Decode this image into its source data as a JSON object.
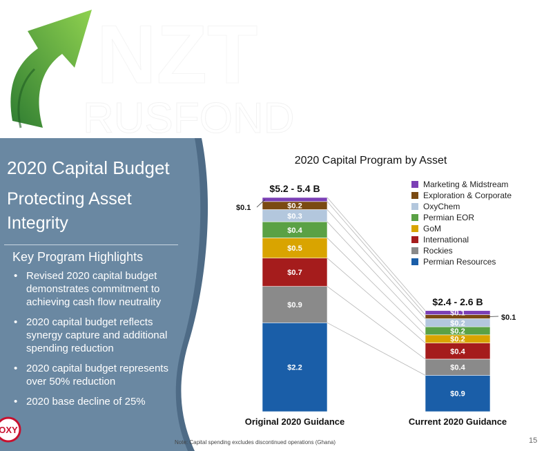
{
  "watermark": {
    "line1": "NZT",
    "line2": "RUSFOND"
  },
  "left_panel": {
    "title": "2020 Capital Budget",
    "subtitle": "Protecting Asset Integrity",
    "highlights_heading": "Key Program Highlights",
    "bullets": [
      "Revised 2020 capital budget demonstrates commitment to achieving cash flow neutrality",
      "2020 capital budget reflects synergy capture and additional spending reduction",
      "2020 capital budget represents over 50% reduction",
      "2020 base decline of 25%"
    ],
    "logo_text": "OXY"
  },
  "colors": {
    "panel": "#6a88a2",
    "panel_dark": "#4e6b86",
    "arrow_light": "#8fd14f",
    "arrow_dark": "#2f7d32"
  },
  "chart_data": {
    "type": "bar",
    "stacked": true,
    "title": "2020 Capital Program by Asset",
    "categories": [
      "Original 2020 Guidance",
      "Current 2020 Guidance"
    ],
    "totals": [
      "$5.2 - 5.4 B",
      "$2.4 - 2.6 B"
    ],
    "unit": "$B",
    "legend_position": "top-right",
    "series": [
      {
        "name": "Permian Resources",
        "color": "#1a5ea8",
        "values": [
          2.2,
          0.9
        ],
        "labels": [
          "$2.2",
          "$0.9"
        ]
      },
      {
        "name": "Rockies",
        "color": "#8a8a8a",
        "values": [
          0.9,
          0.4
        ],
        "labels": [
          "$0.9",
          "$0.4"
        ]
      },
      {
        "name": "International",
        "color": "#a51c1c",
        "values": [
          0.7,
          0.4
        ],
        "labels": [
          "$0.7",
          "$0.4"
        ]
      },
      {
        "name": "GoM",
        "color": "#d9a400",
        "values": [
          0.5,
          0.2
        ],
        "labels": [
          "$0.5",
          "$0.2"
        ]
      },
      {
        "name": "Permian EOR",
        "color": "#5aa145",
        "values": [
          0.4,
          0.2
        ],
        "labels": [
          "$0.4",
          "$0.2"
        ]
      },
      {
        "name": "OxyChem",
        "color": "#b3c7dd",
        "values": [
          0.3,
          0.2
        ],
        "labels": [
          "$0.3",
          "$0.2"
        ]
      },
      {
        "name": "Exploration & Corporate",
        "color": "#7a4a12",
        "values": [
          0.2,
          0.1
        ],
        "labels": [
          "$0.2",
          "$0.1"
        ]
      },
      {
        "name": "Marketing & Midstream",
        "color": "#7b3fb5",
        "values": [
          0.1,
          0.1
        ],
        "labels": [
          "$0.1",
          "$0.1"
        ]
      }
    ]
  },
  "footnote": "Note: Capital spending excludes discontinued operations (Ghana)",
  "page_number": "15"
}
